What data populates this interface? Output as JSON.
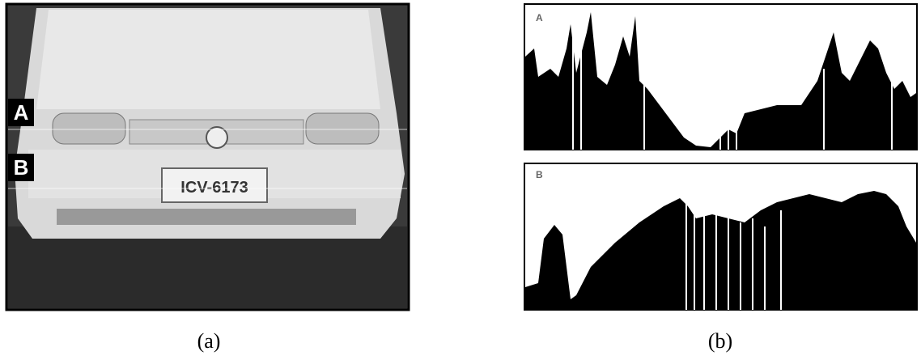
{
  "photo": {
    "labels": [
      "A",
      "B"
    ],
    "plate": "ICV-6173"
  },
  "profiles": [
    {
      "label": "A"
    },
    {
      "label": "B"
    }
  ],
  "captions": [
    "(a)",
    "(b)"
  ]
}
